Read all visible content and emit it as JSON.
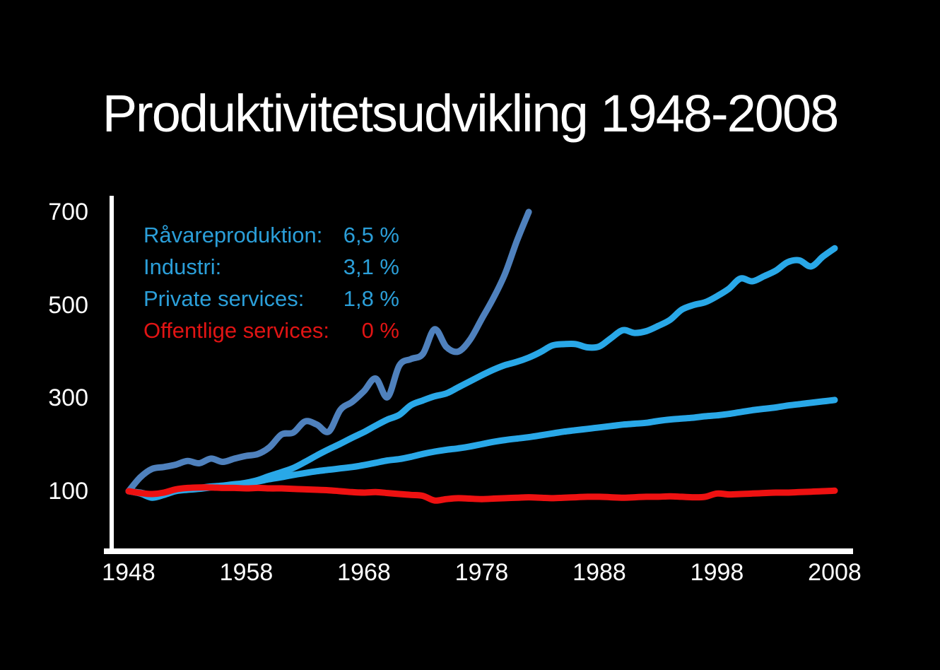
{
  "title": "Produktivitetsudvikling 1948-2008",
  "legend": {
    "items": [
      {
        "label": "Råvareproduktion:",
        "value": "6,5 %",
        "color": "#2b9fd9"
      },
      {
        "label": "Industri:",
        "value": "3,1 %",
        "color": "#2b9fd9"
      },
      {
        "label": "Private services:",
        "value": "1,8 %",
        "color": "#2b9fd9"
      },
      {
        "label": "Offentlige services:",
        "value": "0 %",
        "color": "#e11414"
      }
    ]
  },
  "chart_data": {
    "type": "line",
    "title": "Produktivitetsudvikling 1948-2008",
    "xlabel": "",
    "ylabel": "",
    "x_ticks": [
      1948,
      1958,
      1968,
      1978,
      1988,
      1998,
      2008
    ],
    "y_ticks": [
      100,
      300,
      500,
      700
    ],
    "x_range": [
      1948,
      2008
    ],
    "y_range": [
      40,
      740
    ],
    "grid": false,
    "legend_position": "top-left-inside",
    "axis_color": "#ffffff",
    "background_color": "#000000",
    "series": [
      {
        "name": "Råvareproduktion",
        "avg_growth": "6,5 %",
        "color": "#4f81bd",
        "start_year": 1948,
        "values": [
          100,
          130,
          148,
          152,
          157,
          165,
          160,
          170,
          163,
          170,
          176,
          180,
          195,
          222,
          226,
          250,
          243,
          228,
          275,
          292,
          315,
          342,
          302,
          370,
          384,
          395,
          448,
          410,
          400,
          425,
          470,
          515,
          568,
          638,
          700
        ]
      },
      {
        "name": "Industri",
        "avg_growth": "3,1 %",
        "color": "#29a8e8",
        "start_year": 1948,
        "values": [
          100,
          95,
          86,
          92,
          100,
          103,
          105,
          108,
          110,
          114,
          118,
          124,
          133,
          141,
          150,
          163,
          177,
          190,
          202,
          215,
          227,
          241,
          254,
          264,
          285,
          295,
          304,
          310,
          323,
          336,
          349,
          361,
          371,
          378,
          387,
          399,
          413,
          416,
          416,
          409,
          411,
          429,
          446,
          440,
          444,
          455,
          468,
          490,
          500,
          506,
          519,
          535,
          557,
          551,
          562,
          574,
          592,
          596,
          583,
          604,
          622
        ]
      },
      {
        "name": "Private services",
        "avg_growth": "1,8 %",
        "color": "#29a8e8",
        "start_year": 1948,
        "values": [
          100,
          97,
          92,
          96,
          102,
          105,
          107,
          110,
          112,
          115,
          117,
          121,
          126,
          130,
          135,
          139,
          143,
          146,
          149,
          152,
          156,
          161,
          166,
          169,
          174,
          180,
          185,
          189,
          192,
          196,
          201,
          206,
          210,
          213,
          216,
          220,
          224,
          228,
          231,
          234,
          237,
          240,
          243,
          245,
          247,
          251,
          254,
          256,
          258,
          261,
          263,
          266,
          270,
          274,
          277,
          280,
          284,
          287,
          290,
          293,
          296
        ]
      },
      {
        "name": "Offentlige services",
        "avg_growth": "0 %",
        "color": "#ee1111",
        "start_year": 1948,
        "values": [
          100,
          96,
          94,
          97,
          104,
          107,
          108,
          108,
          107,
          107,
          106,
          107,
          106,
          106,
          105,
          104,
          103,
          102,
          100,
          98,
          97,
          98,
          96,
          94,
          92,
          90,
          80,
          83,
          85,
          84,
          83,
          84,
          85,
          86,
          87,
          86,
          85,
          86,
          87,
          88,
          88,
          87,
          86,
          87,
          88,
          88,
          89,
          88,
          87,
          88,
          95,
          93,
          94,
          95,
          96,
          97,
          97,
          98,
          99,
          100,
          101
        ]
      }
    ]
  }
}
